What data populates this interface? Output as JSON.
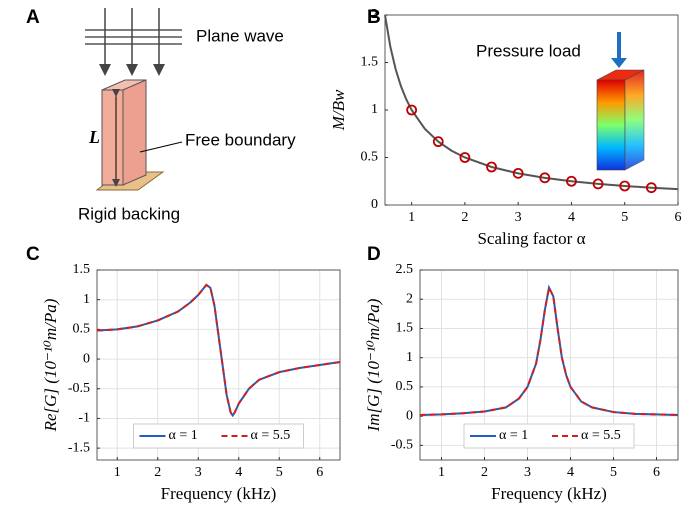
{
  "diagram": {
    "label": "A",
    "plane_wave": "Plane wave",
    "length": "L",
    "free_boundary": "Free boundary",
    "rigid_backing": "Rigid backing"
  },
  "chart_data": [
    {
      "type": "line",
      "label": "B",
      "annotation": "Pressure load",
      "xlabel": "Scaling factor α",
      "ylabel": "M/Bw",
      "xlim": [
        0.5,
        6
      ],
      "xticks": [
        1,
        2,
        3,
        4,
        5,
        6
      ],
      "ylim": [
        0,
        2
      ],
      "yticks": [
        0,
        0.5,
        1,
        1.5,
        2
      ],
      "grid": false,
      "series": [
        {
          "color": "#555555",
          "mode": "line",
          "x": [
            0.5,
            0.6,
            0.7,
            0.8,
            0.9,
            1,
            1.25,
            1.5,
            1.75,
            2,
            2.5,
            3,
            3.5,
            4,
            4.5,
            5,
            5.5,
            6
          ],
          "values": [
            2,
            1.667,
            1.429,
            1.25,
            1.111,
            1,
            0.8,
            0.667,
            0.571,
            0.5,
            0.4,
            0.333,
            0.286,
            0.25,
            0.222,
            0.2,
            0.182,
            0.167
          ]
        },
        {
          "color": "#c00000",
          "mode": "markers",
          "x": [
            1,
            1.5,
            2,
            2.5,
            3,
            3.5,
            4,
            4.5,
            5,
            5.5
          ],
          "values": [
            1,
            0.667,
            0.5,
            0.4,
            0.333,
            0.286,
            0.25,
            0.222,
            0.2,
            0.182
          ]
        }
      ]
    },
    {
      "type": "line",
      "label": "C",
      "xlabel": "Frequency (kHz)",
      "ylabel": "Re[G] (10⁻¹⁰m/Pa)",
      "xlim": [
        0.5,
        6.5
      ],
      "xticks": [
        1,
        2,
        3,
        4,
        5,
        6
      ],
      "ylim": [
        -1.7,
        1.5
      ],
      "yticks": [
        -1.5,
        -1,
        -0.5,
        0,
        0.5,
        1,
        1.5
      ],
      "grid": true,
      "legend": "lower center",
      "x": [
        0.5,
        1,
        1.5,
        2,
        2.5,
        2.8,
        3,
        3.2,
        3.3,
        3.4,
        3.5,
        3.6,
        3.7,
        3.8,
        3.85,
        3.9,
        4,
        4.25,
        4.5,
        5,
        5.5,
        6,
        6.5
      ],
      "series": [
        {
          "name": "α = 1",
          "color": "#1f5fbf",
          "dash": false,
          "values": [
            0.48,
            0.5,
            0.55,
            0.65,
            0.8,
            0.95,
            1.08,
            1.25,
            1.2,
            0.9,
            0.4,
            -0.1,
            -0.6,
            -0.9,
            -0.95,
            -0.9,
            -0.75,
            -0.5,
            -0.35,
            -0.22,
            -0.15,
            -0.1,
            -0.05
          ]
        },
        {
          "name": "α = 5.5",
          "color": "#d02020",
          "dash": true,
          "values": [
            0.48,
            0.5,
            0.55,
            0.65,
            0.8,
            0.95,
            1.08,
            1.25,
            1.2,
            0.9,
            0.4,
            -0.1,
            -0.6,
            -0.9,
            -0.95,
            -0.9,
            -0.75,
            -0.5,
            -0.35,
            -0.22,
            -0.15,
            -0.1,
            -0.05
          ]
        }
      ]
    },
    {
      "type": "line",
      "label": "D",
      "xlabel": "Frequency (kHz)",
      "ylabel": "Im[G] (10⁻¹⁰m/Pa)",
      "xlim": [
        0.5,
        6.5
      ],
      "xticks": [
        1,
        2,
        3,
        4,
        5,
        6
      ],
      "ylim": [
        -0.75,
        2.5
      ],
      "yticks": [
        -0.5,
        0,
        0.5,
        1,
        1.5,
        2,
        2.5
      ],
      "grid": true,
      "legend": "lower center",
      "x": [
        0.5,
        1,
        1.5,
        2,
        2.5,
        2.8,
        3,
        3.2,
        3.3,
        3.4,
        3.5,
        3.6,
        3.7,
        3.8,
        3.9,
        4,
        4.25,
        4.5,
        5,
        5.5,
        6,
        6.5
      ],
      "series": [
        {
          "name": "α = 1",
          "color": "#1f5fbf",
          "dash": false,
          "values": [
            0.02,
            0.03,
            0.05,
            0.08,
            0.15,
            0.3,
            0.5,
            0.9,
            1.3,
            1.8,
            2.2,
            2.05,
            1.5,
            1.0,
            0.7,
            0.5,
            0.25,
            0.15,
            0.07,
            0.04,
            0.03,
            0.02
          ]
        },
        {
          "name": "α = 5.5",
          "color": "#d02020",
          "dash": true,
          "values": [
            0.02,
            0.03,
            0.05,
            0.08,
            0.15,
            0.3,
            0.5,
            0.9,
            1.3,
            1.8,
            2.2,
            2.05,
            1.5,
            1.0,
            0.7,
            0.5,
            0.25,
            0.15,
            0.07,
            0.04,
            0.03,
            0.02
          ]
        }
      ]
    }
  ]
}
